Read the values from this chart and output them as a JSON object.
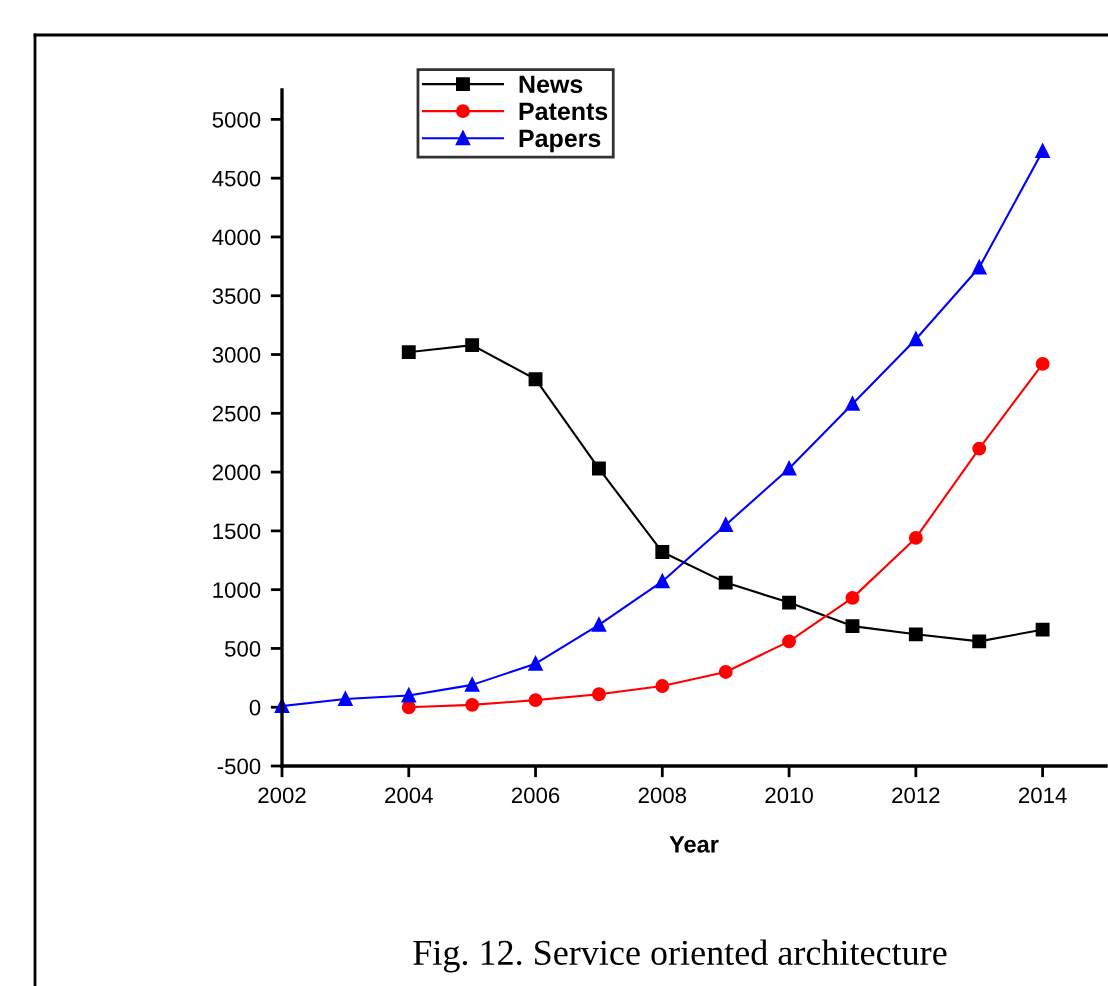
{
  "chart_data": {
    "type": "line",
    "xlabel": "Year",
    "annotations": [
      "Fig. 12. Service oriented architecture"
    ],
    "series": [
      {
        "name": "News",
        "color": "#000000",
        "marker": "square",
        "x": [
          2004,
          2005,
          2006,
          2007,
          2008,
          2009,
          2010,
          2011,
          2012,
          2013,
          2014
        ],
        "values": [
          3020,
          3080,
          2790,
          2030,
          1320,
          1060,
          890,
          690,
          620,
          560,
          660
        ]
      },
      {
        "name": "Patents",
        "color": "#ff0000",
        "marker": "circle",
        "x": [
          2004,
          2005,
          2006,
          2007,
          2008,
          2009,
          2010,
          2011,
          2012,
          2013,
          2014
        ],
        "values": [
          0,
          20,
          60,
          110,
          180,
          300,
          560,
          930,
          1440,
          2200,
          2920
        ]
      },
      {
        "name": "Papers",
        "color": "#0000ff",
        "marker": "triangle",
        "x": [
          2002,
          2003,
          2004,
          2005,
          2006,
          2007,
          2008,
          2009,
          2010,
          2011,
          2012,
          2013,
          2014
        ],
        "values": [
          10,
          70,
          100,
          190,
          370,
          700,
          1070,
          1550,
          2030,
          2580,
          3130,
          3740,
          4730
        ]
      }
    ],
    "xlim": [
      2002,
      2015
    ],
    "xticks": [
      2002,
      2004,
      2006,
      2008,
      2010,
      2012,
      2014
    ],
    "ylim": [
      -500,
      5250
    ],
    "yticks": [
      -500,
      0,
      500,
      1000,
      1500,
      2000,
      2500,
      3000,
      3500,
      4000,
      4500,
      5000
    ],
    "grid": false,
    "legend": "top left",
    "line_style": "solid"
  }
}
